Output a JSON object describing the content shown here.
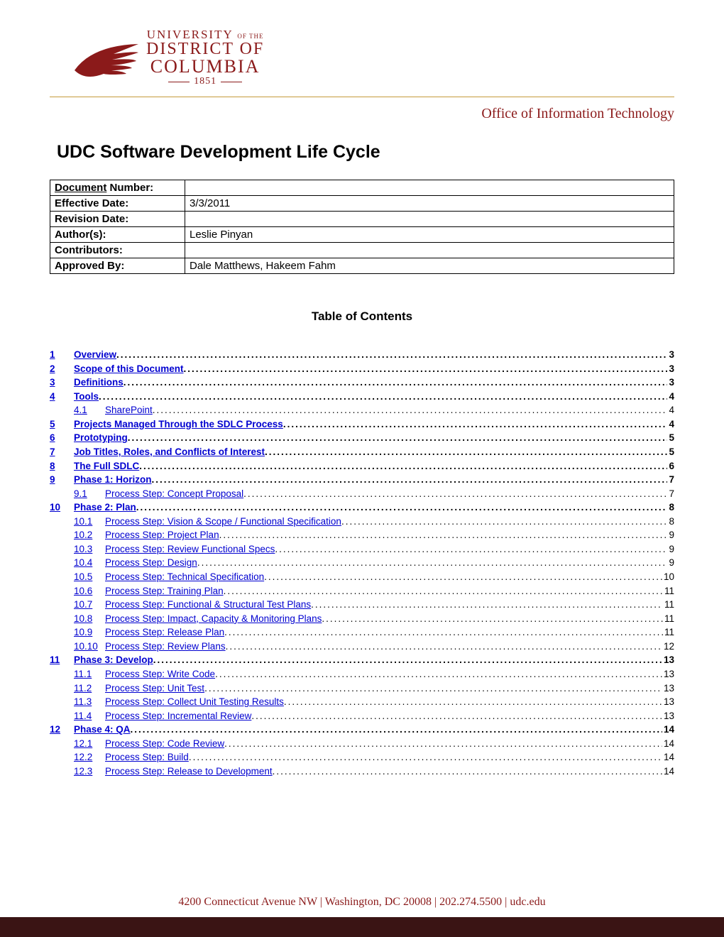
{
  "brand_color": "#8b1a1a",
  "logo": {
    "line1_a": "UNIVERSITY",
    "line1_b": "OF THE",
    "line2": "DISTRICT OF",
    "line3": "COLUMBIA",
    "line4": "1851"
  },
  "office_line": "Office of Information Technology",
  "doc_title": "UDC Software Development Life Cycle",
  "meta": {
    "rows": [
      {
        "label": "Document Number:",
        "value": "",
        "underlined": true
      },
      {
        "label": "Effective Date:",
        "value": "3/3/2011",
        "underlined": false
      },
      {
        "label": "Revision Date:",
        "value": "",
        "underlined": false
      },
      {
        "label": "Author(s):",
        "value": "Leslie Pinyan",
        "underlined": false
      },
      {
        "label": "Contributors:",
        "value": "",
        "underlined": false
      },
      {
        "label": "Approved By:",
        "value": "Dale Matthews, Hakeem Fahm",
        "underlined": false
      }
    ]
  },
  "toc_heading": "Table of Contents",
  "toc": [
    {
      "num": "1",
      "title": "Overview",
      "page": "3",
      "sub": false,
      "bold": true
    },
    {
      "num": "2",
      "title": "Scope of this Document",
      "page": "3",
      "sub": false,
      "bold": true
    },
    {
      "num": "3",
      "title": "Definitions",
      "page": "3",
      "sub": false,
      "bold": true
    },
    {
      "num": "4",
      "title": "Tools",
      "page": "4",
      "sub": false,
      "bold": true
    },
    {
      "num": "4.1",
      "title": "SharePoint",
      "page": "4",
      "sub": true,
      "bold": false
    },
    {
      "num": "5",
      "title": "Projects Managed Through the SDLC Process",
      "page": "4",
      "sub": false,
      "bold": true
    },
    {
      "num": "6",
      "title": "Prototyping",
      "page": "5",
      "sub": false,
      "bold": true
    },
    {
      "num": "7",
      "title": "Job Titles, Roles, and Conflicts of Interest",
      "page": "5",
      "sub": false,
      "bold": true
    },
    {
      "num": "8",
      "title": "The Full SDLC",
      "page": "6",
      "sub": false,
      "bold": true
    },
    {
      "num": "9",
      "title": "Phase 1: Horizon",
      "page": "7",
      "sub": false,
      "bold": true
    },
    {
      "num": "9.1",
      "title": "Process Step: Concept Proposal",
      "page": "7",
      "sub": true,
      "bold": false
    },
    {
      "num": "10",
      "title": "Phase 2: Plan",
      "page": "8",
      "sub": false,
      "bold": true
    },
    {
      "num": "10.1",
      "title": "Process Step: Vision & Scope / Functional Specification",
      "page": "8",
      "sub": true,
      "bold": false
    },
    {
      "num": "10.2",
      "title": "Process Step: Project Plan",
      "page": "9",
      "sub": true,
      "bold": false
    },
    {
      "num": "10.3",
      "title": "Process Step: Review Functional Specs",
      "page": "9",
      "sub": true,
      "bold": false
    },
    {
      "num": "10.4",
      "title": "Process Step: Design",
      "page": "9",
      "sub": true,
      "bold": false
    },
    {
      "num": "10.5",
      "title": "Process Step: Technical Specification",
      "page": "10",
      "sub": true,
      "bold": false
    },
    {
      "num": "10.6",
      "title": "Process Step: Training Plan",
      "page": "11",
      "sub": true,
      "bold": false
    },
    {
      "num": "10.7",
      "title": "Process Step: Functional & Structural Test Plans",
      "page": "11",
      "sub": true,
      "bold": false
    },
    {
      "num": "10.8",
      "title": "Process Step: Impact, Capacity & Monitoring Plans",
      "page": "11",
      "sub": true,
      "bold": false
    },
    {
      "num": "10.9",
      "title": "Process Step: Release Plan",
      "page": "11",
      "sub": true,
      "bold": false
    },
    {
      "num": "10.10",
      "title": "Process Step: Review Plans",
      "page": "12",
      "sub": true,
      "bold": false
    },
    {
      "num": "11",
      "title": "Phase 3: Develop",
      "page": "13",
      "sub": false,
      "bold": true
    },
    {
      "num": "11.1",
      "title": "Process Step: Write Code",
      "page": "13",
      "sub": true,
      "bold": false
    },
    {
      "num": "11.2",
      "title": "Process Step: Unit Test",
      "page": "13",
      "sub": true,
      "bold": false
    },
    {
      "num": "11.3",
      "title": "Process Step: Collect Unit Testing Results",
      "page": "13",
      "sub": true,
      "bold": false
    },
    {
      "num": "11.4",
      "title": "Process Step: Incremental Review",
      "page": "13",
      "sub": true,
      "bold": false
    },
    {
      "num": "12",
      "title": "Phase 4: QA",
      "page": "14",
      "sub": false,
      "bold": true
    },
    {
      "num": "12.1",
      "title": "Process Step: Code Review",
      "page": "14",
      "sub": true,
      "bold": false
    },
    {
      "num": "12.2",
      "title": "Process Step: Build",
      "page": "14",
      "sub": true,
      "bold": false
    },
    {
      "num": "12.3",
      "title": "Process Step: Release to Development",
      "page": "14",
      "sub": true,
      "bold": false
    }
  ],
  "footer_text": "4200 Connecticut Avenue NW  |  Washington, DC 20008  |  202.274.5500  |  udc.edu",
  "footer_bar_color": "#3a1414"
}
